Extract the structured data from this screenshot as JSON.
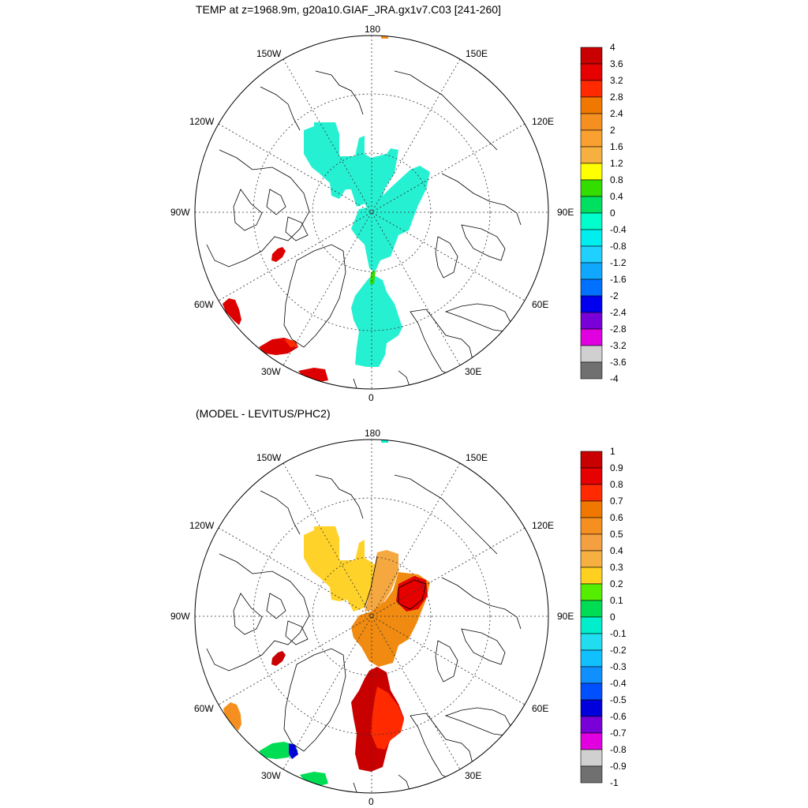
{
  "top_panel": {
    "title": "TEMP at z=1968.9m, g20a10.GIAF_JRA.gx1v7.C03 [241-260]",
    "lon_labels": [
      "180",
      "150W",
      "150E",
      "120W",
      "120E",
      "90W",
      "90E",
      "60W",
      "60E",
      "30W",
      "30E",
      "0"
    ],
    "colorbar": {
      "labels": [
        "4",
        "3.6",
        "3.2",
        "2.8",
        "2.4",
        "2",
        "1.6",
        "1.2",
        "0.8",
        "0.4",
        "0",
        "-0.4",
        "-0.8",
        "-1.2",
        "-1.6",
        "-2",
        "-2.4",
        "-2.8",
        "-3.2",
        "-3.6",
        "-4"
      ],
      "colors": [
        "#c80000",
        "#e60000",
        "#ff2a00",
        "#f07800",
        "#f59020",
        "#faa030",
        "#f5b040",
        "#ffff00",
        "#33dd00",
        "#00e060",
        "#00ffcc",
        "#00eeee",
        "#20d0ff",
        "#10a8ff",
        "#0070ff",
        "#0000ee",
        "#7a00d8",
        "#e000e0",
        "#d0d0d0",
        "#707070"
      ]
    },
    "fill_colors": {
      "arctic": "#26f0d2",
      "warm": "#dd0000",
      "accent": "#ff2a00"
    }
  },
  "bottom_panel": {
    "title": "(MODEL - LEVITUS/PHC2)",
    "lon_labels": [
      "180",
      "150W",
      "150E",
      "120W",
      "120E",
      "90W",
      "90E",
      "60W",
      "60E",
      "30W",
      "30E",
      "0"
    ],
    "colorbar": {
      "labels": [
        "1",
        "0.9",
        "0.8",
        "0.7",
        "0.6",
        "0.5",
        "0.4",
        "0.3",
        "0.2",
        "0.1",
        "0",
        "-0.1",
        "-0.2",
        "-0.3",
        "-0.4",
        "-0.5",
        "-0.6",
        "-0.7",
        "-0.8",
        "-0.9",
        "-1"
      ],
      "colors": [
        "#c80000",
        "#e60000",
        "#ff2a00",
        "#f07800",
        "#f59020",
        "#f5a040",
        "#f5b040",
        "#ffd020",
        "#55ee00",
        "#00dd55",
        "#00eecc",
        "#20ddf0",
        "#10c0ff",
        "#1090ff",
        "#0050ff",
        "#0000dd",
        "#7a00d8",
        "#e000e0",
        "#d0d0d0",
        "#707070"
      ]
    },
    "fill_colors": {
      "canada_basin": "#ffd22a",
      "makarov": "#f5a840",
      "eurasian": "#f08a10",
      "core": "#f07000",
      "fram": "#c80000",
      "fram_edge": "#ff2a00"
    }
  }
}
